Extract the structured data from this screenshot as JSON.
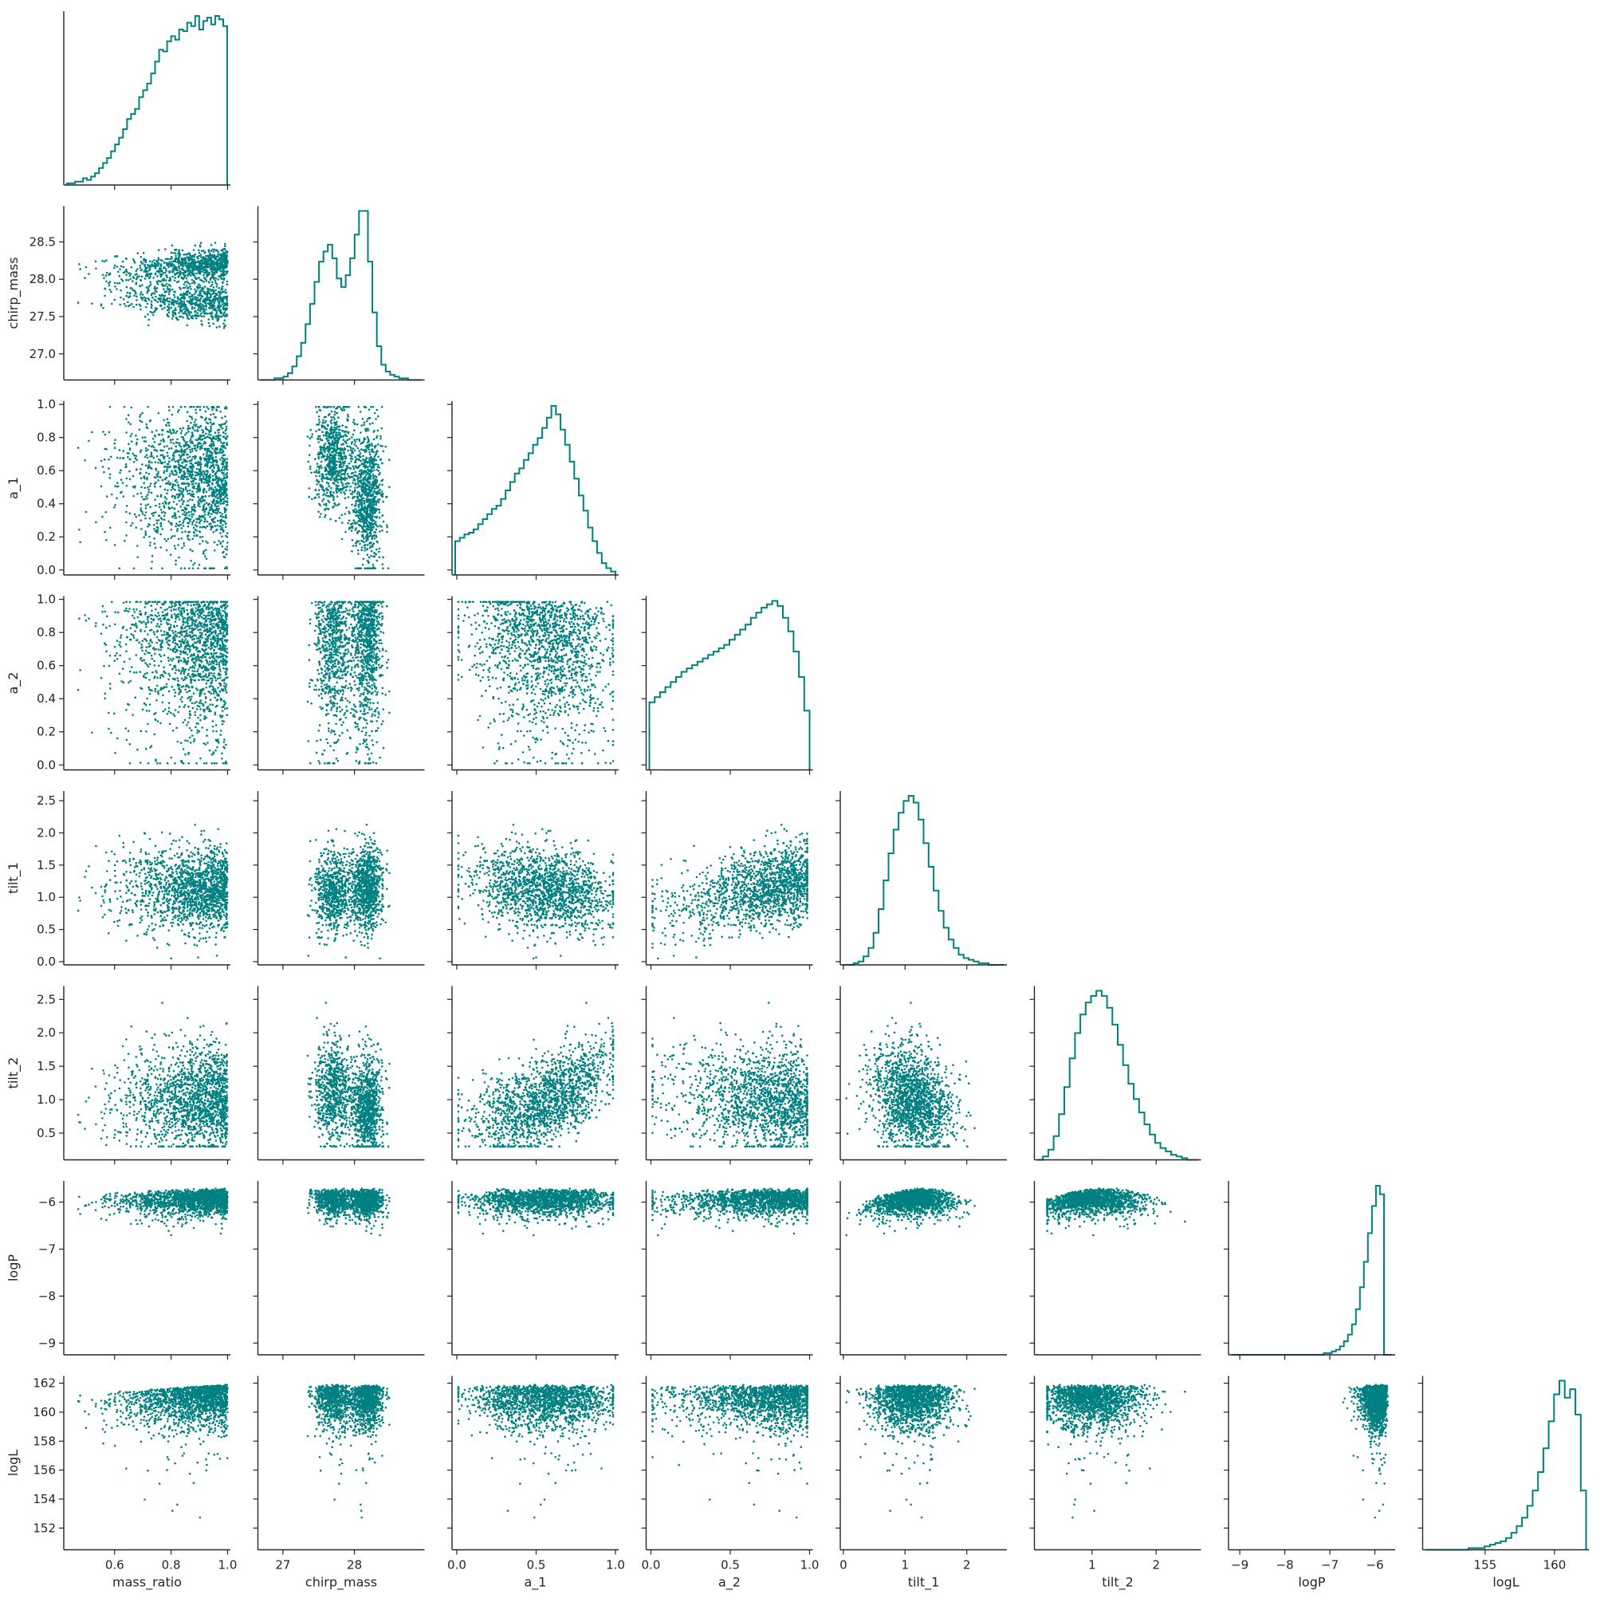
{
  "chart_data": {
    "type": "corner",
    "color": "#008080",
    "parameters": [
      "mass_ratio",
      "chirp_mass",
      "a_1",
      "a_2",
      "tilt_1",
      "tilt_2",
      "logP",
      "logL"
    ],
    "x_labels": [
      "mass_ratio",
      "chirp_mass",
      "a_1",
      "a_2",
      "tilt_1",
      "tilt_2",
      "logP",
      "logL"
    ],
    "y_labels": [
      "",
      "chirp_mass",
      "a_1",
      "a_2",
      "tilt_1",
      "tilt_2",
      "logP",
      "logL"
    ],
    "ranges": [
      [
        0.42,
        1.01
      ],
      [
        26.65,
        28.98
      ],
      [
        -0.03,
        1.02
      ],
      [
        -0.03,
        1.02
      ],
      [
        -0.05,
        2.65
      ],
      [
        0.1,
        2.7
      ],
      [
        -9.25,
        -5.55
      ],
      [
        150.5,
        162.5
      ]
    ],
    "ticks": [
      {
        "values": [
          0.6,
          0.8,
          1.0
        ],
        "labels": [
          "0.6",
          "0.8",
          "1.0"
        ]
      },
      {
        "values": [
          27,
          28
        ],
        "labels": [
          "27",
          "28"
        ]
      },
      {
        "values": [
          0.0,
          0.5,
          1.0
        ],
        "labels": [
          "0.0",
          "0.5",
          "1.0"
        ]
      },
      {
        "values": [
          0.0,
          0.5,
          1.0
        ],
        "labels": [
          "0.0",
          "0.5",
          "1.0"
        ]
      },
      {
        "values": [
          0,
          1,
          2
        ],
        "labels": [
          "0",
          "1",
          "2"
        ]
      },
      {
        "values": [
          1,
          2
        ],
        "labels": [
          "1",
          "2"
        ]
      },
      {
        "values": [
          -9,
          -8,
          -7,
          -6
        ],
        "labels": [
          "−9",
          "−8",
          "−7",
          "−6"
        ]
      },
      {
        "values": [
          155,
          160
        ],
        "labels": [
          "155",
          "160"
        ]
      }
    ],
    "y_ticks": [
      null,
      {
        "values": [
          27.0,
          27.5,
          28.0,
          28.5
        ],
        "labels": [
          "27.0",
          "27.5",
          "28.0",
          "28.5"
        ]
      },
      {
        "values": [
          0.0,
          0.2,
          0.4,
          0.6,
          0.8,
          1.0
        ],
        "labels": [
          "0.0",
          "0.2",
          "0.4",
          "0.6",
          "0.8",
          "1.0"
        ]
      },
      {
        "values": [
          0.0,
          0.2,
          0.4,
          0.6,
          0.8,
          1.0
        ],
        "labels": [
          "0.0",
          "0.2",
          "0.4",
          "0.6",
          "0.8",
          "1.0"
        ]
      },
      {
        "values": [
          0.0,
          0.5,
          1.0,
          1.5,
          2.0,
          2.5
        ],
        "labels": [
          "0.0",
          "0.5",
          "1.0",
          "1.5",
          "2.0",
          "2.5"
        ]
      },
      {
        "values": [
          0.5,
          1.0,
          1.5,
          2.0,
          2.5
        ],
        "labels": [
          "0.5",
          "1.0",
          "1.5",
          "2.0",
          "2.5"
        ]
      },
      {
        "values": [
          -9,
          -8,
          -7,
          -6
        ],
        "labels": [
          "−9",
          "−8",
          "−7",
          "−6"
        ]
      },
      {
        "values": [
          152,
          154,
          156,
          158,
          160,
          162
        ],
        "labels": [
          "152",
          "154",
          "156",
          "158",
          "160",
          "162"
        ]
      }
    ],
    "histograms": [
      {
        "edges": [
          0.44,
          1.0
        ],
        "counts": [
          0.01,
          0.01,
          0.02,
          0.02,
          0.04,
          0.03,
          0.05,
          0.07,
          0.1,
          0.13,
          0.16,
          0.2,
          0.24,
          0.28,
          0.33,
          0.39,
          0.42,
          0.45,
          0.52,
          0.56,
          0.6,
          0.66,
          0.73,
          0.8,
          0.79,
          0.85,
          0.88,
          0.86,
          0.92,
          0.91,
          0.96,
          0.94,
          1.0,
          0.92,
          0.97,
          0.99,
          0.95,
          1.0,
          0.98,
          0.94
        ]
      },
      {
        "edges": [
          26.65,
          28.95
        ],
        "counts": [
          0.0,
          0.0,
          0.0,
          0.01,
          0.01,
          0.02,
          0.04,
          0.08,
          0.14,
          0.22,
          0.33,
          0.45,
          0.58,
          0.7,
          0.76,
          0.8,
          0.72,
          0.6,
          0.55,
          0.62,
          0.72,
          0.86,
          1.0,
          1.0,
          0.7,
          0.4,
          0.2,
          0.09,
          0.05,
          0.03,
          0.02,
          0.01,
          0.01,
          0.0,
          0.0,
          0.0
        ]
      },
      {
        "edges": [
          0.0,
          1.0
        ],
        "counts": [
          0.2,
          0.22,
          0.24,
          0.25,
          0.27,
          0.3,
          0.33,
          0.36,
          0.39,
          0.41,
          0.45,
          0.5,
          0.55,
          0.6,
          0.63,
          0.68,
          0.72,
          0.77,
          0.81,
          0.87,
          0.93,
          1.0,
          0.95,
          0.86,
          0.77,
          0.67,
          0.57,
          0.47,
          0.38,
          0.28,
          0.2,
          0.13,
          0.07,
          0.04,
          0.02
        ]
      },
      {
        "edges": [
          0.0,
          1.0
        ],
        "counts": [
          0.4,
          0.43,
          0.46,
          0.49,
          0.52,
          0.55,
          0.58,
          0.6,
          0.62,
          0.64,
          0.66,
          0.68,
          0.7,
          0.72,
          0.74,
          0.77,
          0.8,
          0.83,
          0.86,
          0.9,
          0.93,
          0.96,
          0.98,
          1.0,
          0.97,
          0.9,
          0.82,
          0.7,
          0.55,
          0.35
        ]
      },
      {
        "edges": [
          0.0,
          2.6
        ],
        "counts": [
          0.0,
          0.0,
          0.01,
          0.02,
          0.05,
          0.1,
          0.19,
          0.33,
          0.5,
          0.66,
          0.8,
          0.9,
          0.97,
          1.0,
          0.96,
          0.86,
          0.72,
          0.58,
          0.44,
          0.32,
          0.22,
          0.15,
          0.1,
          0.06,
          0.04,
          0.03,
          0.02,
          0.01,
          0.01,
          0.0,
          0.0,
          0.0
        ]
      },
      {
        "edges": [
          0.25,
          2.65
        ],
        "counts": [
          0.0,
          0.02,
          0.06,
          0.14,
          0.27,
          0.43,
          0.6,
          0.75,
          0.86,
          0.93,
          0.97,
          1.0,
          0.97,
          0.9,
          0.8,
          0.68,
          0.56,
          0.45,
          0.36,
          0.28,
          0.21,
          0.15,
          0.1,
          0.07,
          0.05,
          0.03,
          0.02,
          0.01,
          0.0,
          0.0
        ]
      },
      {
        "edges": [
          -9.1,
          -5.6
        ],
        "counts": [
          0.0,
          0.0,
          0.0,
          0.0,
          0.0,
          0.0,
          0.0,
          0.0,
          0.0,
          0.0,
          0.0,
          0.0,
          0.0,
          0.0,
          0.0,
          0.0,
          0.0,
          0.0,
          0.0,
          0.0,
          0.0,
          0.0,
          0.0,
          0.01,
          0.01,
          0.02,
          0.03,
          0.05,
          0.08,
          0.12,
          0.18,
          0.27,
          0.4,
          0.55,
          0.72,
          0.88,
          1.0,
          0.95,
          0.0,
          0.0
        ]
      },
      {
        "edges": [
          151.0,
          162.0
        ],
        "counts": [
          0.0,
          0.0,
          0.0,
          0.0,
          0.0,
          0.0,
          0.0,
          0.0,
          0.01,
          0.01,
          0.01,
          0.02,
          0.03,
          0.04,
          0.05,
          0.07,
          0.1,
          0.14,
          0.19,
          0.26,
          0.35,
          0.46,
          0.6,
          0.76,
          0.92,
          1.0,
          0.9,
          0.95,
          0.8,
          0.35
        ]
      }
    ]
  }
}
